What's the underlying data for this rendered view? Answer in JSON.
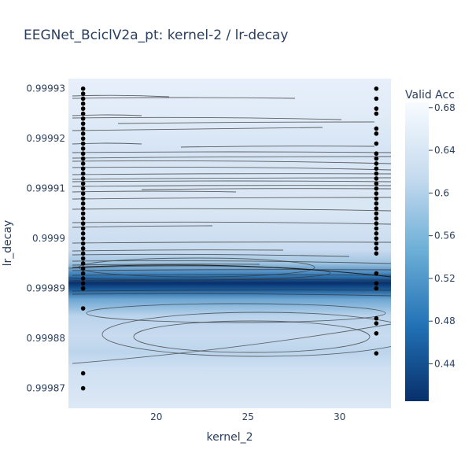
{
  "chart_data": {
    "type": "contour",
    "title": "EEGNet_BciclV2a_pt: kernel-2 / lr-decay",
    "xlabel": "kernel_2",
    "ylabel": "lr_decay",
    "xlim": [
      15.2,
      32.8
    ],
    "ylim": [
      0.999866,
      0.999932
    ],
    "x_ticks": [
      20,
      25,
      30
    ],
    "y_ticks": [
      0.99987,
      0.99988,
      0.99989,
      0.9999,
      0.99991,
      0.99992,
      0.99993
    ],
    "y_tick_labels": [
      "0.99987",
      "0.99988",
      "0.99989",
      "0.9999",
      "0.99991",
      "0.99992",
      "0.99993"
    ],
    "colorbar": {
      "title": "Valid Acc",
      "range": [
        0.405,
        0.685
      ],
      "ticks": [
        0.44,
        0.48,
        0.52,
        0.56,
        0.6,
        0.64,
        0.68
      ],
      "tick_labels": [
        "0.44",
        "0.48",
        "0.52",
        "0.56",
        "0.6",
        "0.64",
        "0.68"
      ],
      "colorscale": [
        "#08306b",
        "#2171b5",
        "#6baed6",
        "#c6dbef",
        "#f7fbff"
      ]
    },
    "points_x16": [
      0.99993,
      0.999929,
      0.999928,
      0.999927,
      0.999926,
      0.999925,
      0.999924,
      0.999923,
      0.999922,
      0.999921,
      0.99992,
      0.999919,
      0.999918,
      0.999917,
      0.999916,
      0.999915,
      0.999914,
      0.999913,
      0.999912,
      0.999911,
      0.99991,
      0.999909,
      0.999908,
      0.999907,
      0.999906,
      0.999905,
      0.999904,
      0.999903,
      0.999902,
      0.999901,
      0.9999,
      0.999899,
      0.999898,
      0.999897,
      0.999896,
      0.999895,
      0.999894,
      0.999893,
      0.999892,
      0.999891,
      0.99989,
      0.99989,
      0.999886,
      0.999873,
      0.99987
    ],
    "points_x32": [
      0.99993,
      0.999928,
      0.999926,
      0.999925,
      0.999922,
      0.999921,
      0.999919,
      0.999917,
      0.999916,
      0.999915,
      0.999914,
      0.999913,
      0.999912,
      0.999911,
      0.99991,
      0.999909,
      0.999908,
      0.999907,
      0.999906,
      0.999905,
      0.999904,
      0.999903,
      0.999902,
      0.999901,
      0.9999,
      0.999899,
      0.999898,
      0.999897,
      0.999893,
      0.999891,
      0.99989,
      0.999884,
      0.999883,
      0.999881,
      0.999877
    ]
  }
}
